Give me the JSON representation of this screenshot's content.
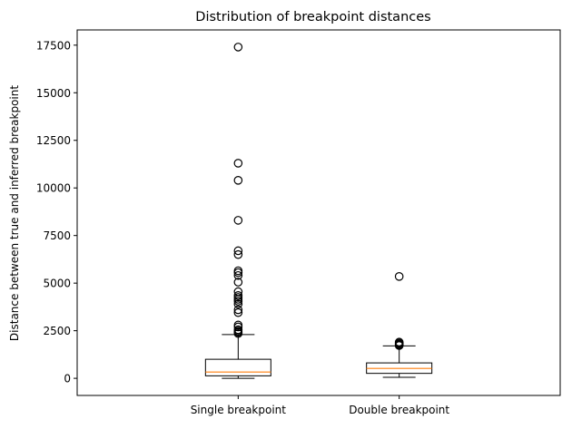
{
  "chart_data": {
    "type": "boxplot",
    "title": "Distribution of breakpoint distances",
    "xlabel": "",
    "ylabel": "Distance between true and inferred breakpoint",
    "categories": [
      "Single breakpoint",
      "Double breakpoint"
    ],
    "ylim": [
      -900,
      18300
    ],
    "yticks": [
      0,
      2500,
      5000,
      7500,
      10000,
      12500,
      15000,
      17500
    ],
    "ytick_labels": [
      "0",
      "2500",
      "5000",
      "7500",
      "10000",
      "12500",
      "15000",
      "17500"
    ],
    "grid": false,
    "boxes": [
      {
        "category": "Single breakpoint",
        "whisker_low": 0,
        "q1": 130,
        "median": 330,
        "q3": 1000,
        "whisker_high": 2300,
        "outliers": [
          2350,
          2420,
          2480,
          2550,
          2700,
          2800,
          3450,
          3600,
          3900,
          4050,
          4150,
          4250,
          4350,
          4550,
          5050,
          5400,
          5550,
          5650,
          6500,
          6700,
          8300,
          10400,
          11300,
          17400
        ]
      },
      {
        "category": "Double breakpoint",
        "whisker_low": 50,
        "q1": 260,
        "median": 520,
        "q3": 810,
        "whisker_high": 1700,
        "outliers": [
          1720,
          1760,
          1800,
          1850,
          1900,
          5350
        ]
      }
    ],
    "colors": {
      "box": "#000000",
      "median": "#ff7f0e",
      "outlier": "#000000"
    }
  }
}
